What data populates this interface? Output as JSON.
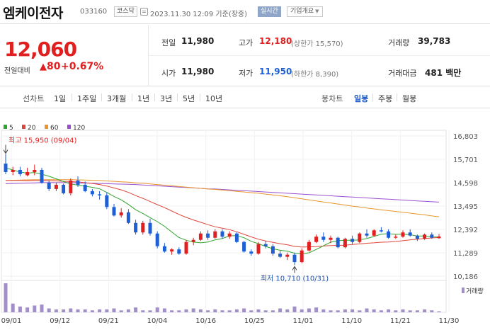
{
  "header": {
    "name": "엠케이전자",
    "code": "033160",
    "market": "코스닥",
    "timestamp": "2023.11.30 12:09  기준(장중)",
    "realtime": "실시간",
    "company_btn": "기업개요"
  },
  "price": {
    "current": "12,060",
    "change_label": "전일대비",
    "change_arrow": "▲",
    "change": "80",
    "change_pct": "+0.67%"
  },
  "stats": {
    "prev_close_label": "전일",
    "prev_close": "11,980",
    "open_label": "시가",
    "open": "11,980",
    "high_label": "고가",
    "high": "12,180",
    "upper_limit": "(상한가 15,570)",
    "low_label": "저가",
    "low": "11,950",
    "lower_limit": "(하한가 8,390)",
    "volume_label": "거래량",
    "volume": "39,783",
    "amount_label": "거래대금",
    "amount": "481 백만"
  },
  "tabs": {
    "line_label": "선차트",
    "periods": [
      "1일",
      "1주일",
      "3개월",
      "1년",
      "3년",
      "5년",
      "10년"
    ],
    "candle_label": "봉차트",
    "candle_periods": [
      "일봉",
      "주봉",
      "월봉"
    ],
    "selected_candle": "일봉"
  },
  "colors": {
    "up": "#e02020",
    "down": "#1e5fd6",
    "ma5": "#2fa52f",
    "ma20": "#e0463c",
    "ma60": "#e8962c",
    "ma120": "#9b4fd0",
    "volume": "#a38fc8"
  },
  "chart_data": {
    "type": "candlestick",
    "legend": [
      {
        "name": "5",
        "color": "#2fa52f"
      },
      {
        "name": "20",
        "color": "#e0463c"
      },
      {
        "name": "60",
        "color": "#e8962c"
      },
      {
        "name": "120",
        "color": "#9b4fd0"
      }
    ],
    "y_ticks": [
      "16,803",
      "15,701",
      "14,598",
      "13,495",
      "12,392",
      "11,289",
      "10,186"
    ],
    "ylim": [
      10186,
      16803
    ],
    "x_ticks": [
      "09/01",
      "09/12",
      "09/21",
      "10/04",
      "10/16",
      "10/25",
      "11/01",
      "11/10",
      "11/21",
      "11/30"
    ],
    "volume_label": "거래량",
    "annotations": {
      "high": "최고 15,950 (09/04)",
      "low": "최저 10,710 (10/31)"
    },
    "candles": [
      [
        15500,
        15950,
        15000,
        15100
      ],
      [
        15100,
        15350,
        14950,
        15200
      ],
      [
        15200,
        15350,
        14900,
        15000
      ],
      [
        14950,
        15300,
        14900,
        15100
      ],
      [
        15100,
        15450,
        14950,
        15200
      ],
      [
        15200,
        15300,
        14550,
        14600
      ],
      [
        14600,
        14700,
        14200,
        14300
      ],
      [
        14300,
        14600,
        14200,
        14500
      ],
      [
        14500,
        14550,
        14050,
        14100
      ],
      [
        14100,
        14800,
        14000,
        14700
      ],
      [
        14700,
        14900,
        14400,
        14500
      ],
      [
        14500,
        14650,
        14150,
        14200
      ],
      [
        14200,
        14300,
        13950,
        14050
      ],
      [
        14050,
        14200,
        13800,
        14000
      ],
      [
        14000,
        14150,
        13350,
        13450
      ],
      [
        13450,
        13600,
        13000,
        13050
      ],
      [
        13050,
        13400,
        12950,
        13200
      ],
      [
        13200,
        13350,
        12650,
        12700
      ],
      [
        12700,
        12850,
        12150,
        12250
      ],
      [
        12250,
        12800,
        12150,
        12700
      ],
      [
        12700,
        12900,
        12100,
        12200
      ],
      [
        12200,
        12300,
        11500,
        11600
      ],
      [
        11600,
        11750,
        11300,
        11350
      ],
      [
        11350,
        11500,
        11200,
        11450
      ],
      [
        11450,
        11550,
        11200,
        11250
      ],
      [
        11250,
        11900,
        11200,
        11800
      ],
      [
        11800,
        12000,
        11650,
        11900
      ],
      [
        11900,
        12300,
        11850,
        12200
      ],
      [
        12200,
        12350,
        11900,
        12000
      ],
      [
        12000,
        12400,
        11950,
        12300
      ],
      [
        12300,
        12400,
        11950,
        12050
      ],
      [
        12050,
        12300,
        11950,
        12200
      ],
      [
        12200,
        12250,
        11750,
        11800
      ],
      [
        11800,
        11850,
        11300,
        11350
      ],
      [
        11350,
        11450,
        11150,
        11250
      ],
      [
        11250,
        11800,
        11200,
        11700
      ],
      [
        11700,
        11850,
        11500,
        11600
      ],
      [
        11600,
        11700,
        11150,
        11250
      ],
      [
        11250,
        11400,
        11050,
        11100
      ],
      [
        11100,
        11300,
        10950,
        11200
      ],
      [
        11200,
        11300,
        10710,
        10850
      ],
      [
        10850,
        11500,
        10800,
        11400
      ],
      [
        11400,
        11900,
        11350,
        11800
      ],
      [
        11800,
        12150,
        11750,
        12050
      ],
      [
        12050,
        12250,
        11800,
        11900
      ],
      [
        11900,
        12100,
        11750,
        12000
      ],
      [
        12000,
        12050,
        11500,
        11550
      ],
      [
        11550,
        12000,
        11500,
        11950
      ],
      [
        11950,
        12100,
        11700,
        11800
      ],
      [
        11800,
        12250,
        11750,
        12200
      ],
      [
        12200,
        12400,
        12000,
        12100
      ],
      [
        12100,
        12400,
        12050,
        12350
      ],
      [
        12350,
        12500,
        12250,
        12300
      ],
      [
        12300,
        12400,
        11950,
        12000
      ],
      [
        12000,
        12150,
        11950,
        12050
      ],
      [
        12050,
        12350,
        12000,
        12250
      ],
      [
        12250,
        12400,
        12050,
        12100
      ],
      [
        12100,
        12150,
        11850,
        11950
      ],
      [
        11950,
        12200,
        11900,
        12150
      ],
      [
        12150,
        12250,
        11950,
        12000
      ],
      [
        11980,
        12180,
        11950,
        12060
      ]
    ],
    "ma5": [
      15300,
      15200,
      15100,
      15050,
      15080,
      15000,
      14900,
      14780,
      14650,
      14540,
      14480,
      14430,
      14380,
      14310,
      14140,
      13950,
      13790,
      13570,
      13320,
      13140,
      12950,
      12760,
      12540,
      12270,
      12010,
      11880,
      11800,
      11760,
      11800,
      11900,
      11960,
      12090,
      12100,
      12000,
      11830,
      11720,
      11590,
      11480,
      11410,
      11370,
      11270,
      11240,
      11290,
      11450,
      11620,
      11790,
      11860,
      11880,
      11880,
      11900,
      11960,
      12060,
      12170,
      12190,
      12160,
      12170,
      12140,
      12080,
      12080,
      12040,
      12030
    ],
    "ma20": [
      14700,
      14700,
      14700,
      14690,
      14700,
      14700,
      14690,
      14680,
      14660,
      14650,
      14630,
      14600,
      14560,
      14510,
      14440,
      14350,
      14260,
      14140,
      13990,
      13860,
      13710,
      13560,
      13420,
      13260,
      13100,
      12960,
      12840,
      12730,
      12620,
      12520,
      12450,
      12380,
      12280,
      12160,
      12040,
      11930,
      11850,
      11780,
      11720,
      11670,
      11590,
      11560,
      11570,
      11580,
      11610,
      11630,
      11640,
      11650,
      11680,
      11710,
      11740,
      11760,
      11790,
      11800,
      11820,
      11860,
      11900,
      11930,
      11960,
      11990,
      12010
    ],
    "ma60": [
      14700,
      14710,
      14720,
      14730,
      14740,
      14740,
      14740,
      14740,
      14740,
      14740,
      14730,
      14720,
      14710,
      14700,
      14680,
      14660,
      14640,
      14620,
      14590,
      14570,
      14540,
      14510,
      14480,
      14450,
      14420,
      14390,
      14360,
      14330,
      14300,
      14280,
      14250,
      14220,
      14190,
      14160,
      14130,
      14100,
      14060,
      14020,
      13980,
      13940,
      13890,
      13840,
      13790,
      13740,
      13690,
      13640,
      13590,
      13540,
      13490,
      13450,
      13400,
      13360,
      13320,
      13280,
      13240,
      13200,
      13160,
      13120,
      13080,
      13030,
      12990
    ],
    "ma120": [
      14550,
      14560,
      14570,
      14580,
      14590,
      14600,
      14600,
      14600,
      14600,
      14600,
      14590,
      14580,
      14570,
      14560,
      14550,
      14540,
      14530,
      14520,
      14510,
      14490,
      14470,
      14450,
      14430,
      14410,
      14390,
      14370,
      14350,
      14330,
      14310,
      14300,
      14280,
      14260,
      14240,
      14220,
      14200,
      14180,
      14160,
      14140,
      14120,
      14100,
      14080,
      14060,
      14040,
      14020,
      14000,
      13980,
      13960,
      13940,
      13920,
      13900,
      13880,
      13860,
      13840,
      13820,
      13800,
      13780,
      13760,
      13740,
      13720,
      13700,
      13680
    ],
    "volume": [
      30,
      9,
      6,
      5,
      7,
      8,
      4,
      3,
      3,
      4,
      3,
      3,
      2,
      3,
      3,
      4,
      2,
      3,
      5,
      2,
      2,
      5,
      4,
      2,
      2,
      3,
      4,
      3,
      2,
      3,
      2,
      2,
      3,
      4,
      2,
      3,
      2,
      2,
      4,
      3,
      6,
      3,
      4,
      5,
      3,
      2,
      2,
      3,
      3,
      2,
      4,
      3,
      2,
      3,
      2,
      3,
      2,
      2,
      3,
      2,
      1
    ]
  }
}
